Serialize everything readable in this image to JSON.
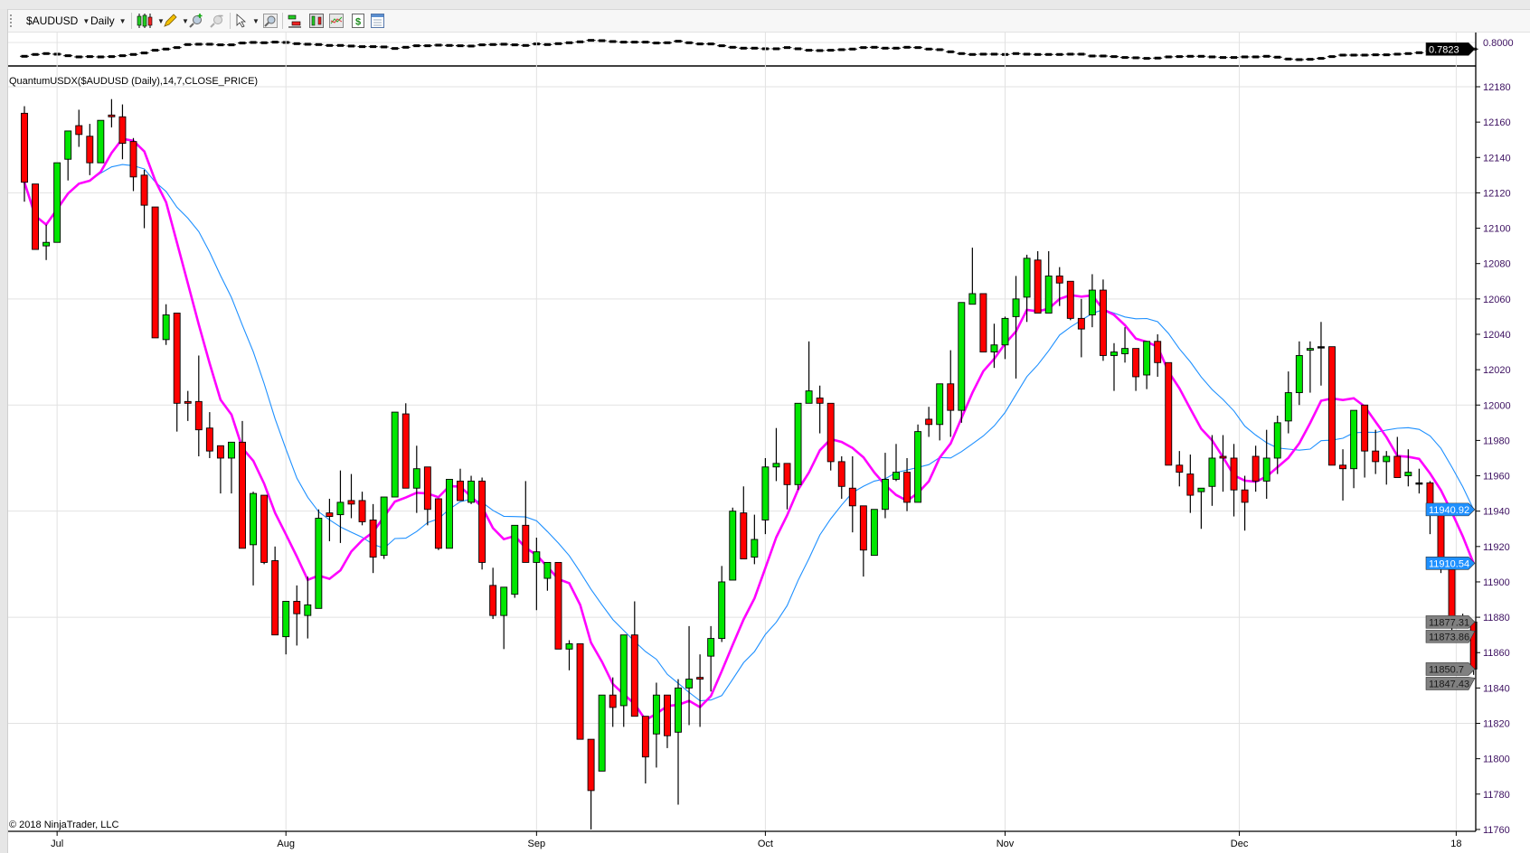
{
  "toolbar": {
    "instrument": "$AUDUSD",
    "interval": "Daily",
    "icons": [
      "chart-style-candles-icon",
      "drawing-pencil-icon",
      "zoom-in-icon",
      "zoom-out-icon",
      "pointer-icon",
      "magnifier-icon",
      "data-series-icon",
      "chart-style-icon",
      "indicators-icon",
      "strategies-dollar-icon",
      "properties-icon"
    ]
  },
  "upper_panel": {
    "axis_label": "0.8000",
    "last_price_tag": {
      "text": "0.7823",
      "value": 0.7823,
      "color": "#000000"
    },
    "closes": [
      0.7653,
      0.7696,
      0.7717,
      0.7703,
      0.7667,
      0.7639,
      0.7646,
      0.7639,
      0.7646,
      0.7667,
      0.7696,
      0.7731,
      0.7795,
      0.7823,
      0.7858,
      0.7929,
      0.7936,
      0.7936,
      0.7922,
      0.7922,
      0.7965,
      0.7979,
      0.7972,
      0.7986,
      0.7979,
      0.795,
      0.7936,
      0.7929,
      0.7908,
      0.7908,
      0.7894,
      0.788,
      0.788,
      0.7873,
      0.7837,
      0.7865,
      0.7901,
      0.7901,
      0.7915,
      0.7908,
      0.7901,
      0.7894,
      0.7922,
      0.7929,
      0.7936,
      0.7922,
      0.7908,
      0.7943,
      0.7929,
      0.795,
      0.7972,
      0.7993,
      0.8028,
      0.8021,
      0.8,
      0.7986,
      0.7986,
      0.7986,
      0.7965,
      0.7972,
      0.8007,
      0.7972,
      0.7943,
      0.7943,
      0.7901,
      0.7865,
      0.7844,
      0.7844,
      0.783,
      0.783,
      0.7858,
      0.783,
      0.7795,
      0.7788,
      0.7795,
      0.7809,
      0.7823,
      0.7858,
      0.7865,
      0.7844,
      0.7844,
      0.7865,
      0.7858,
      0.7823,
      0.7809,
      0.7759,
      0.7717,
      0.7696,
      0.7703,
      0.7703,
      0.7696,
      0.7717,
      0.7703,
      0.7696,
      0.7696,
      0.7696,
      0.7703,
      0.7703,
      0.766,
      0.766,
      0.7646,
      0.7625,
      0.7618,
      0.7604,
      0.7611,
      0.7639,
      0.7646,
      0.7653,
      0.7653,
      0.7639,
      0.7625,
      0.7625,
      0.7639,
      0.7639,
      0.7653,
      0.7632,
      0.7589,
      0.7575,
      0.7582,
      0.7604,
      0.7646,
      0.7681,
      0.7681,
      0.7681,
      0.7688,
      0.7688,
      0.7703,
      0.7717,
      0.7738,
      0.7774,
      0.7802,
      0.7816,
      0.7823,
      0.7823
    ]
  },
  "indicator_label": "QuantumUSDX($AUDUSD (Daily),14,7,CLOSE_PRICE)",
  "copyright": "© 2018 NinjaTrader, LLC",
  "chart_data": {
    "type": "candlestick",
    "title": "",
    "ylim": [
      11760,
      12180
    ],
    "grid": true,
    "colors": {
      "up": "#00e600",
      "down": "#ff0000",
      "doji": "#000000",
      "ma_fast": "#ff00ff",
      "ma_slow": "#1e90ff"
    },
    "moving_averages": [
      {
        "period": 7,
        "color": "#ff00ff",
        "last": 11910.54
      },
      {
        "period": 14,
        "color": "#1e90ff",
        "last": 11940.92
      }
    ],
    "y_ticks": [
      "11760",
      "11780",
      "11800",
      "11820",
      "11840",
      "11860",
      "11880",
      "11900",
      "11920",
      "11940",
      "11960",
      "11980",
      "12000",
      "12020",
      "12040",
      "12060",
      "12080",
      "12100",
      "12120",
      "12140",
      "12160",
      "12180"
    ],
    "x_labels": [
      {
        "label": "Jul",
        "index": 3
      },
      {
        "label": "Aug",
        "index": 24
      },
      {
        "label": "Sep",
        "index": 47
      },
      {
        "label": "Oct",
        "index": 68
      },
      {
        "label": "Nov",
        "index": 90
      },
      {
        "label": "Dec",
        "index": 111.5
      },
      {
        "label": "18",
        "index": 131.4
      }
    ],
    "price_tags": [
      {
        "text": "11940.92",
        "value": 11940.92,
        "color": "#1e90ff",
        "text_color": "#ffffff"
      },
      {
        "text": "11910.54",
        "value": 11910.54,
        "color": "#1e90ff",
        "text_color": "#ffffff"
      },
      {
        "text": "11877.31",
        "value": 11877.31,
        "color": "#808080",
        "text_color": "#1a1a1a"
      },
      {
        "text": "11873.86",
        "value": 11873.86,
        "color": "#808080",
        "text_color": "#1a1a1a"
      },
      {
        "text": "11847.43",
        "value": 11847.43,
        "color": "#808080",
        "text_color": "#1a1a1a"
      },
      {
        "text": "11850.7",
        "value": 11850.7,
        "color": "#808080",
        "text_color": "#1a1a1a"
      }
    ],
    "ohlc": [
      [
        12165,
        12169,
        12115,
        12126
      ],
      [
        12125,
        12125,
        12088,
        12088
      ],
      [
        12090,
        12102,
        12082,
        12092
      ],
      [
        12092,
        12137,
        12092,
        12137
      ],
      [
        12139,
        12155,
        12127,
        12155
      ],
      [
        12158,
        12167,
        12146,
        12153
      ],
      [
        12152,
        12159,
        12130,
        12137
      ],
      [
        12137,
        12161,
        12137,
        12161
      ],
      [
        12164,
        12173,
        12157,
        12163
      ],
      [
        12163,
        12170,
        12139,
        12148
      ],
      [
        12149,
        12151,
        12121,
        12129
      ],
      [
        12130,
        12133,
        12100,
        12113
      ],
      [
        12112,
        12112,
        12038,
        12038
      ],
      [
        12037,
        12057,
        12034,
        12051
      ],
      [
        12052,
        12052,
        11985,
        12001
      ],
      [
        12002,
        12008,
        11991,
        12001
      ],
      [
        12002,
        12028,
        11971,
        11986
      ],
      [
        11987,
        11996,
        11970,
        11974
      ],
      [
        11977,
        11977,
        11950,
        11970
      ],
      [
        11970,
        11979,
        11950,
        11979
      ],
      [
        11979,
        11991,
        11919,
        11919
      ],
      [
        11921,
        11951,
        11898,
        11950
      ],
      [
        11949,
        11949,
        11910,
        11911
      ],
      [
        11912,
        11920,
        11870,
        11870
      ],
      [
        11869,
        11889,
        11859,
        11889
      ],
      [
        11889,
        11898,
        11864,
        11882
      ],
      [
        11881,
        11903,
        11868,
        11887
      ],
      [
        11885,
        11941,
        11885,
        11936
      ],
      [
        11939,
        11947,
        11923,
        11937
      ],
      [
        11938,
        11963,
        11922,
        11945
      ],
      [
        11946,
        11961,
        11936,
        11944
      ],
      [
        11946,
        11951,
        11932,
        11934
      ],
      [
        11935,
        11944,
        11905,
        11914
      ],
      [
        11915,
        11948,
        11913,
        11948
      ],
      [
        11948,
        11996,
        11948,
        11996
      ],
      [
        11995,
        12001,
        11953,
        11953
      ],
      [
        11953,
        11977,
        11939,
        11964
      ],
      [
        11965,
        11965,
        11932,
        11941
      ],
      [
        11947,
        11947,
        11918,
        11919
      ],
      [
        11919,
        11958,
        11919,
        11958
      ],
      [
        11957,
        11964,
        11946,
        11946
      ],
      [
        11945,
        11960,
        11944,
        11957
      ],
      [
        11957,
        11959,
        11907,
        11911
      ],
      [
        11898,
        11908,
        11879,
        11881
      ],
      [
        11881,
        11897,
        11862,
        11897
      ],
      [
        11893,
        11932,
        11891,
        11932
      ],
      [
        11932,
        11957,
        11911,
        11911
      ],
      [
        11911,
        11925,
        11884,
        11917
      ],
      [
        11902,
        11911,
        11895,
        11911
      ],
      [
        11911,
        11911,
        11862,
        11862
      ],
      [
        11862,
        11867,
        11850,
        11865
      ],
      [
        11865,
        11865,
        11811,
        11811
      ],
      [
        11811,
        11811,
        11760,
        11782
      ],
      [
        11793,
        11836,
        11793,
        11836
      ],
      [
        11836,
        11846,
        11818,
        11829
      ],
      [
        11830,
        11870,
        11818,
        11870
      ],
      [
        11870,
        11889,
        11824,
        11824
      ],
      [
        11824,
        11824,
        11786,
        11801
      ],
      [
        11814,
        11843,
        11795,
        11836
      ],
      [
        11836,
        11836,
        11806,
        11813
      ],
      [
        11815,
        11845,
        11774,
        11840
      ],
      [
        11840,
        11875,
        11819,
        11845
      ],
      [
        11846,
        11859,
        11818,
        11845
      ],
      [
        11858,
        11875,
        11838,
        11868
      ],
      [
        11868,
        11909,
        11866,
        11900
      ],
      [
        11901,
        11942,
        11901,
        11940
      ],
      [
        11939,
        11954,
        11913,
        11913
      ],
      [
        11914,
        11938,
        11910,
        11924
      ],
      [
        11935,
        11970,
        11927,
        11965
      ],
      [
        11965,
        11987,
        11957,
        11967
      ],
      [
        11967,
        11967,
        11941,
        11955
      ],
      [
        11955,
        12001,
        11952,
        12001
      ],
      [
        12001,
        12036,
        12001,
        12008
      ],
      [
        12004,
        12011,
        11984,
        12001
      ],
      [
        12001,
        12001,
        11963,
        11968
      ],
      [
        11968,
        11971,
        11947,
        11954
      ],
      [
        11953,
        11971,
        11928,
        11943
      ],
      [
        11943,
        11943,
        11903,
        11918
      ],
      [
        11915,
        11941,
        11915,
        11941
      ],
      [
        11941,
        11973,
        11936,
        11958
      ],
      [
        11958,
        11978,
        11957,
        11962
      ],
      [
        11962,
        11970,
        11940,
        11945
      ],
      [
        11945,
        11989,
        11945,
        11985
      ],
      [
        11992,
        11999,
        11982,
        11989
      ],
      [
        11989,
        12012,
        11980,
        12012
      ],
      [
        12012,
        12031,
        11982,
        11997
      ],
      [
        11997,
        12058,
        11990,
        12058
      ],
      [
        12057,
        12089,
        12057,
        12063
      ],
      [
        12063,
        12063,
        12030,
        12030
      ],
      [
        12030,
        12046,
        12021,
        12034
      ],
      [
        12034,
        12050,
        12026,
        12049
      ],
      [
        12050,
        12073,
        12015,
        12060
      ],
      [
        12061,
        12085,
        12047,
        12083
      ],
      [
        12082,
        12087,
        12052,
        12052
      ],
      [
        12052,
        12087,
        12052,
        12073
      ],
      [
        12073,
        12078,
        12056,
        12069
      ],
      [
        12070,
        12070,
        12048,
        12049
      ],
      [
        12049,
        12060,
        12027,
        12043
      ],
      [
        12051,
        12074,
        12044,
        12065
      ],
      [
        12065,
        12071,
        12025,
        12028
      ],
      [
        12028,
        12035,
        12008,
        12030
      ],
      [
        12029,
        12044,
        12024,
        12032
      ],
      [
        12032,
        12032,
        12008,
        12016
      ],
      [
        12017,
        12036,
        12009,
        12036
      ],
      [
        12036,
        12040,
        12016,
        12024
      ],
      [
        12024,
        12024,
        11966,
        11966
      ],
      [
        11966,
        11974,
        11954,
        11962
      ],
      [
        11961,
        11972,
        11939,
        11949
      ],
      [
        11951,
        11953,
        11930,
        11953
      ],
      [
        11954,
        11983,
        11943,
        11970
      ],
      [
        11971,
        11983,
        11951,
        11970
      ],
      [
        11970,
        11978,
        11937,
        11952
      ],
      [
        11952,
        11960,
        11929,
        11945
      ],
      [
        11971,
        11977,
        11951,
        11957
      ],
      [
        11957,
        11986,
        11947,
        11970
      ],
      [
        11970,
        11994,
        11961,
        11990
      ],
      [
        11991,
        12019,
        11984,
        12007
      ],
      [
        12007,
        12036,
        12000,
        12028
      ],
      [
        12031,
        12036,
        12007,
        12032
      ],
      [
        12033,
        12047,
        12011,
        12033
      ],
      [
        12033,
        12033,
        11966,
        11966
      ],
      [
        11966,
        11975,
        11946,
        11964
      ],
      [
        11964,
        11997,
        11953,
        11997
      ],
      [
        12000,
        12000,
        11959,
        11974
      ],
      [
        11974,
        11986,
        11961,
        11968
      ],
      [
        11968,
        11974,
        11955,
        11971
      ],
      [
        11971,
        11982,
        11959,
        11959
      ],
      [
        11960,
        11975,
        11954,
        11962
      ],
      [
        11956,
        11964,
        11950,
        11956
      ],
      [
        11956,
        11957,
        11927,
        11939
      ],
      [
        11938,
        11938,
        11905,
        11908
      ],
      [
        11907,
        11907,
        11869,
        11880
      ],
      [
        11880,
        11882,
        11877,
        11877
      ],
      [
        11877.31,
        11877.31,
        11847.43,
        11850.7
      ]
    ]
  }
}
